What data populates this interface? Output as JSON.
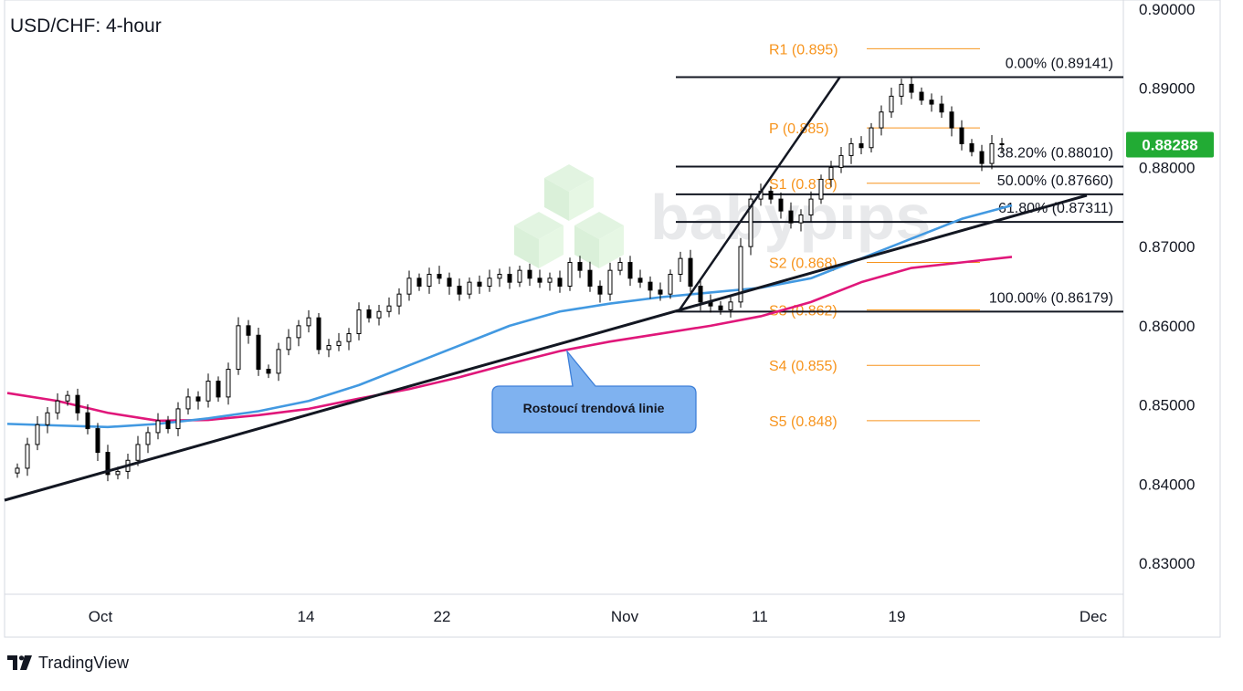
{
  "chart_data": {
    "type": "candlestick",
    "title": "USD/CHF: 4-hour",
    "ylim": [
      0.826,
      0.901
    ],
    "y_ticks": [
      "0.90000",
      "0.89000",
      "0.88000",
      "0.87000",
      "0.86000",
      "0.85000",
      "0.84000",
      "0.83000"
    ],
    "y_tick_values": [
      0.9,
      0.89,
      0.88,
      0.87,
      0.86,
      0.85,
      0.84,
      0.83
    ],
    "x_ticks": [
      "Oct",
      "14",
      "22",
      "Nov",
      "11",
      "19",
      "Dec"
    ],
    "grid": false,
    "current_price": {
      "label": "0.88288",
      "value": 0.88288,
      "color": "#22ab34"
    },
    "pivot_levels": [
      {
        "label": "R1 (0.895)",
        "value": 0.895
      },
      {
        "label": "P (0.885)",
        "value": 0.885
      },
      {
        "label": "S1 (0.878)",
        "value": 0.878
      },
      {
        "label": "S2 (0.868)",
        "value": 0.868
      },
      {
        "label": "S3 (0.862)",
        "value": 0.862
      },
      {
        "label": "S4 (0.855)",
        "value": 0.855
      },
      {
        "label": "S5 (0.848)",
        "value": 0.848
      }
    ],
    "fib_levels": [
      {
        "label": "0.00% (0.89141)",
        "value": 0.89141
      },
      {
        "label": "38.20% (0.88010)",
        "value": 0.8801
      },
      {
        "label": "50.00% (0.87660)",
        "value": 0.8766
      },
      {
        "label": "61.80% (0.87311)",
        "value": 0.87311
      },
      {
        "label": "100.00% (0.86179)",
        "value": 0.86179
      }
    ],
    "annotation": "Rostoucí trendová linie",
    "watermark": "babypips",
    "colors": {
      "pivot": "#f7941d",
      "fib_line": "#131722",
      "sma_fast": "#4299e1",
      "sma_slow": "#e0177a",
      "callout_fill": "#7fb2f0",
      "callout_border": "#3d7fd8",
      "candle": "#000000"
    },
    "series": [
      {
        "name": "",
        "kind": "ohlc_close",
        "x": [
          2,
          4,
          6,
          8,
          10,
          12,
          14,
          16,
          18,
          20,
          22,
          24,
          26,
          28,
          30,
          32,
          34,
          36,
          38,
          40,
          42,
          44,
          46,
          48,
          50,
          52,
          54,
          56,
          58,
          60,
          62,
          64,
          66,
          68,
          70,
          72,
          74,
          76,
          78,
          80,
          82,
          84,
          86,
          88,
          90,
          92,
          94,
          96,
          98,
          100,
          102,
          104,
          106,
          108,
          110,
          112,
          114,
          116,
          118,
          120,
          122,
          124,
          126,
          128,
          130,
          132,
          134,
          136,
          138,
          140,
          142,
          144,
          146,
          148,
          150,
          152,
          154,
          156,
          158,
          160,
          162,
          164,
          166,
          168,
          170,
          172,
          174,
          176,
          178,
          180,
          182,
          184,
          186,
          188,
          190,
          192,
          194,
          196,
          198
        ],
        "values": [
          0.842,
          0.845,
          0.8475,
          0.849,
          0.8505,
          0.8512,
          0.849,
          0.847,
          0.844,
          0.8412,
          0.8416,
          0.843,
          0.845,
          0.8465,
          0.848,
          0.847,
          0.8495,
          0.851,
          0.8505,
          0.853,
          0.851,
          0.8545,
          0.86,
          0.8588,
          0.8545,
          0.854,
          0.857,
          0.8585,
          0.86,
          0.861,
          0.857,
          0.8575,
          0.858,
          0.859,
          0.862,
          0.861,
          0.8618,
          0.8625,
          0.864,
          0.866,
          0.865,
          0.8665,
          0.866,
          0.865,
          0.864,
          0.8655,
          0.865,
          0.866,
          0.8665,
          0.8655,
          0.867,
          0.866,
          0.8655,
          0.866,
          0.865,
          0.868,
          0.867,
          0.865,
          0.864,
          0.867,
          0.868,
          0.866,
          0.8655,
          0.8645,
          0.864,
          0.8665,
          0.8685,
          0.865,
          0.863,
          0.8625,
          0.862,
          0.863,
          0.87,
          0.876,
          0.877,
          0.876,
          0.8745,
          0.873,
          0.874,
          0.876,
          0.8785,
          0.88,
          0.8815,
          0.883,
          0.8825,
          0.885,
          0.887,
          0.889,
          0.8905,
          0.8895,
          0.8885,
          0.888,
          0.887,
          0.885,
          0.883,
          0.882,
          0.8805,
          0.883,
          0.8829
        ]
      },
      {
        "name": "",
        "kind": "sma_fast",
        "x": [
          0,
          10,
          20,
          30,
          40,
          50,
          60,
          70,
          80,
          90,
          100,
          110,
          120,
          130,
          140,
          150,
          160,
          170,
          180,
          190,
          200
        ],
        "values": [
          0.8476,
          0.8474,
          0.8472,
          0.8476,
          0.8483,
          0.8492,
          0.8505,
          0.8525,
          0.855,
          0.8575,
          0.86,
          0.8618,
          0.8628,
          0.8636,
          0.8642,
          0.8648,
          0.866,
          0.8685,
          0.871,
          0.8735,
          0.8752
        ]
      },
      {
        "name": "",
        "kind": "sma_slow",
        "x": [
          0,
          10,
          20,
          30,
          40,
          50,
          60,
          70,
          80,
          90,
          100,
          110,
          120,
          130,
          140,
          150,
          160,
          170,
          180,
          190,
          200
        ],
        "values": [
          0.8515,
          0.8505,
          0.849,
          0.848,
          0.8481,
          0.8487,
          0.8495,
          0.8508,
          0.852,
          0.8535,
          0.8552,
          0.8568,
          0.858,
          0.859,
          0.86,
          0.8612,
          0.863,
          0.8655,
          0.8673,
          0.868,
          0.8687
        ]
      }
    ]
  },
  "footer": {
    "brand": "TradingView"
  }
}
